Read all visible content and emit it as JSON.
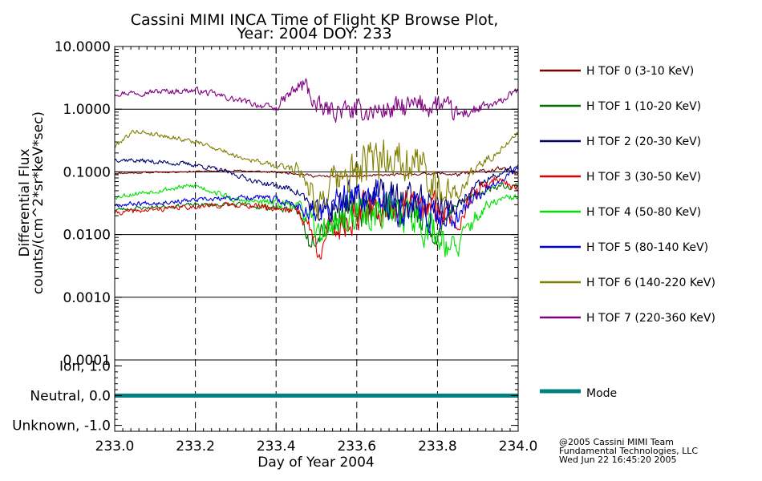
{
  "chart_data": {
    "type": "line",
    "title": "Cassini MIMI INCA Time of Flight KP Browse Plot,",
    "subtitle": "Year: 2004 DOY: 233",
    "xlabel": "Day of Year 2004",
    "xlim": [
      233.0,
      234.0
    ],
    "x_ticks": [
      "233.0",
      "233.2",
      "233.4",
      "233.6",
      "233.8",
      "234.0"
    ],
    "x_tick_values": [
      233.0,
      233.2,
      233.4,
      233.6,
      233.8,
      234.0
    ],
    "top_panel": {
      "ylabel_line1": "Differential Flux",
      "ylabel_line2": "counts/(cm^2*sr*keV*sec)",
      "yscale": "log",
      "ylim": [
        0.0001,
        10.0
      ],
      "y_ticks": [
        "10.0000",
        "1.0000",
        "0.1000",
        "0.0100",
        "0.0010",
        "0.0001"
      ],
      "y_tick_values": [
        10.0,
        1.0,
        0.1,
        0.01,
        0.001,
        0.0001
      ],
      "series": [
        {
          "name": "H TOF 0 (3-10 KeV)",
          "color": "#7a0000",
          "seed": 11,
          "x": [
            233.0,
            233.3,
            233.45,
            233.5,
            233.6,
            233.7,
            233.8,
            233.85,
            233.95,
            234.0
          ],
          "y": [
            0.095,
            0.105,
            0.095,
            0.085,
            0.085,
            0.09,
            0.095,
            0.09,
            0.11,
            0.1
          ],
          "noise": [
            0.02,
            0.02,
            0.03,
            0.03,
            0.03,
            0.03,
            0.03,
            0.05,
            0.06,
            0.05
          ]
        },
        {
          "name": "H TOF 1 (10-20 KeV)",
          "color": "#007000",
          "seed": 23,
          "x": [
            233.0,
            233.2,
            233.3,
            233.45,
            233.48,
            233.55,
            233.65,
            233.75,
            233.8,
            233.85,
            233.95,
            234.0
          ],
          "y": [
            0.025,
            0.03,
            0.03,
            0.025,
            0.008,
            0.02,
            0.03,
            0.02,
            0.01,
            0.03,
            0.06,
            0.06
          ],
          "noise": [
            0.05,
            0.05,
            0.06,
            0.1,
            0.25,
            0.45,
            0.45,
            0.45,
            0.3,
            0.1,
            0.08,
            0.08
          ]
        },
        {
          "name": "H TOF 2 (20-30 KeV)",
          "color": "#000070",
          "seed": 37,
          "x": [
            233.0,
            233.2,
            233.35,
            233.45,
            233.5,
            233.6,
            233.7,
            233.8,
            233.85,
            233.95,
            234.0
          ],
          "y": [
            0.16,
            0.13,
            0.07,
            0.05,
            0.02,
            0.04,
            0.04,
            0.03,
            0.025,
            0.09,
            0.12
          ],
          "noise": [
            0.06,
            0.06,
            0.06,
            0.1,
            0.3,
            0.42,
            0.42,
            0.35,
            0.2,
            0.08,
            0.08
          ]
        },
        {
          "name": "H TOF 3 (30-50 KeV)",
          "color": "#e00000",
          "seed": 41,
          "x": [
            233.0,
            233.2,
            233.3,
            233.45,
            233.5,
            233.6,
            233.7,
            233.8,
            233.85,
            233.95,
            234.0
          ],
          "y": [
            0.022,
            0.028,
            0.03,
            0.025,
            0.006,
            0.02,
            0.03,
            0.025,
            0.015,
            0.08,
            0.05
          ],
          "noise": [
            0.06,
            0.06,
            0.06,
            0.12,
            0.35,
            0.45,
            0.45,
            0.4,
            0.25,
            0.1,
            0.08
          ]
        },
        {
          "name": "H TOF 4 (50-80 KeV)",
          "color": "#00e000",
          "seed": 53,
          "x": [
            233.0,
            233.2,
            233.3,
            233.45,
            233.5,
            233.6,
            233.7,
            233.8,
            233.85,
            233.95,
            234.0
          ],
          "y": [
            0.04,
            0.06,
            0.035,
            0.03,
            0.01,
            0.02,
            0.025,
            0.01,
            0.005,
            0.035,
            0.04
          ],
          "noise": [
            0.06,
            0.07,
            0.07,
            0.12,
            0.3,
            0.45,
            0.5,
            0.45,
            0.3,
            0.1,
            0.08
          ]
        },
        {
          "name": "H TOF 5 (80-140 KeV)",
          "color": "#0000dd",
          "seed": 67,
          "x": [
            233.0,
            233.2,
            233.35,
            233.45,
            233.5,
            233.6,
            233.7,
            233.8,
            233.85,
            233.95,
            234.0
          ],
          "y": [
            0.03,
            0.035,
            0.04,
            0.03,
            0.02,
            0.04,
            0.03,
            0.02,
            0.02,
            0.07,
            0.11
          ],
          "noise": [
            0.06,
            0.06,
            0.07,
            0.12,
            0.35,
            0.45,
            0.45,
            0.4,
            0.25,
            0.08,
            0.08
          ]
        },
        {
          "name": "H TOF 6 (140-220 KeV)",
          "color": "#808000",
          "seed": 79,
          "x": [
            233.0,
            233.05,
            233.2,
            233.3,
            233.4,
            233.45,
            233.5,
            233.6,
            233.7,
            233.8,
            233.85,
            233.95,
            234.0
          ],
          "y": [
            0.25,
            0.45,
            0.3,
            0.18,
            0.12,
            0.12,
            0.03,
            0.1,
            0.2,
            0.06,
            0.04,
            0.2,
            0.4
          ],
          "noise": [
            0.06,
            0.06,
            0.06,
            0.06,
            0.07,
            0.15,
            0.4,
            0.55,
            0.55,
            0.45,
            0.2,
            0.08,
            0.08
          ]
        },
        {
          "name": "H TOF 7 (220-360 KeV)",
          "color": "#800080",
          "seed": 97,
          "x": [
            233.0,
            233.2,
            233.3,
            233.4,
            233.47,
            233.5,
            233.6,
            233.7,
            233.8,
            233.85,
            233.95,
            234.0
          ],
          "y": [
            1.8,
            2.0,
            1.4,
            1.0,
            2.5,
            1.0,
            0.9,
            1.0,
            1.2,
            0.8,
            1.2,
            2.0
          ],
          "noise": [
            0.07,
            0.08,
            0.08,
            0.08,
            0.25,
            0.25,
            0.25,
            0.3,
            0.3,
            0.2,
            0.1,
            0.08
          ]
        }
      ]
    },
    "bottom_panel": {
      "ylim": [
        -1.2,
        1.2
      ],
      "y_ticks": [
        "Ion, 1.0",
        "Neutral, 0.0",
        "Unknown, -1.0"
      ],
      "y_tick_values": [
        1.0,
        0.0,
        -1.0
      ],
      "series": [
        {
          "name": "Mode",
          "color": "#008080",
          "x": [
            233.0,
            234.0
          ],
          "y": [
            0.0,
            0.0
          ]
        }
      ]
    },
    "legend_position": "right",
    "grid": "vertical dashed at major x ticks, horizontal solid at decades"
  },
  "footer": {
    "line1": "@2005 Cassini MIMI Team",
    "line2": "Fundamental Technologies, LLC",
    "line3": "Wed Jun 22 16:45:20 2005"
  }
}
